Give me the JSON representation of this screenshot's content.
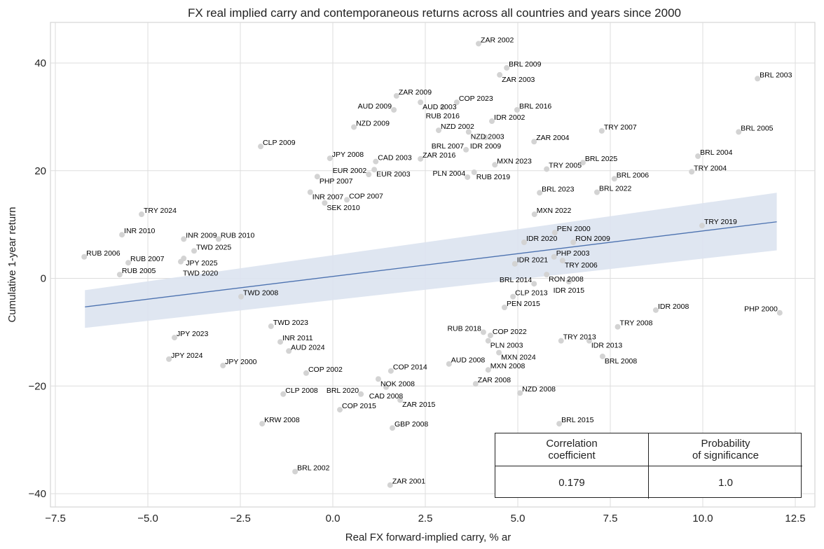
{
  "chart_data": {
    "type": "scatter",
    "title": "FX real implied carry and contemporaneous returns across all countries and years since 2000",
    "xlabel": "Real FX forward-implied carry, % ar",
    "ylabel": "Cumulative 1-year return",
    "xlim": [
      -7.7,
      12.9
    ],
    "ylim": [
      -43,
      47.5
    ],
    "xticks": [
      -7.5,
      -5.0,
      -2.5,
      0.0,
      2.5,
      5.0,
      7.5,
      10.0,
      12.5
    ],
    "yticks": [
      -40,
      -20,
      0,
      20,
      40
    ],
    "grid": true,
    "colors": {
      "points": "#d3d3d3",
      "regression": "#4c72b0",
      "band": "#dbe3f0"
    },
    "regression": {
      "x": [
        -6.7,
        12.0
      ],
      "y": [
        -5.3,
        10.5
      ],
      "band_lower": [
        -9.2,
        5.2
      ],
      "band_upper": [
        -2.2,
        15.9
      ]
    },
    "points": [
      {
        "label": "ZAR 2002",
        "x": 3.94,
        "y": 43.6
      },
      {
        "label": "BRL 2009",
        "x": 4.7,
        "y": 39.1
      },
      {
        "label": "ZAR 2003",
        "x": 4.51,
        "y": 37.8
      },
      {
        "label": "BRL 2003",
        "x": 11.48,
        "y": 37.1
      },
      {
        "label": "ZAR 2009",
        "x": 1.72,
        "y": 33.9
      },
      {
        "label": "AUD 2003",
        "x": 2.37,
        "y": 32.7
      },
      {
        "label": "COP 2023",
        "x": 3.35,
        "y": 32.7
      },
      {
        "label": "AUD 2009",
        "x": 1.65,
        "y": 31.3
      },
      {
        "label": "RUB 2016",
        "x": 2.97,
        "y": 31.8
      },
      {
        "label": "BRL 2016",
        "x": 4.98,
        "y": 31.3
      },
      {
        "label": "IDR 2002",
        "x": 4.3,
        "y": 29.2
      },
      {
        "label": "NZD 2009",
        "x": 0.57,
        "y": 28.1
      },
      {
        "label": "NZD 2002",
        "x": 2.86,
        "y": 27.5
      },
      {
        "label": "NZD 2003",
        "x": 3.67,
        "y": 27.2
      },
      {
        "label": "TRY 2007",
        "x": 7.27,
        "y": 27.4
      },
      {
        "label": "BRL 2005",
        "x": 10.97,
        "y": 27.2
      },
      {
        "label": "IDR 2009",
        "x": 4.13,
        "y": 26.2
      },
      {
        "label": "ZAR 2004",
        "x": 5.44,
        "y": 25.4
      },
      {
        "label": "CLP 2009",
        "x": -1.95,
        "y": 24.5
      },
      {
        "label": "BRL 2007",
        "x": 3.6,
        "y": 23.9
      },
      {
        "label": "BRL 2004",
        "x": 9.87,
        "y": 22.7
      },
      {
        "label": "JPY 2008",
        "x": -0.08,
        "y": 22.3
      },
      {
        "label": "CAD 2003",
        "x": 1.16,
        "y": 21.7
      },
      {
        "label": "ZAR 2016",
        "x": 2.37,
        "y": 22.2
      },
      {
        "label": "MXN 2023",
        "x": 4.38,
        "y": 21.1
      },
      {
        "label": "BRL 2025",
        "x": 6.76,
        "y": 21.5
      },
      {
        "label": "TRY 2005",
        "x": 5.78,
        "y": 20.3
      },
      {
        "label": "TRY 2004",
        "x": 9.7,
        "y": 19.8
      },
      {
        "label": "EUR 2003",
        "x": 1.12,
        "y": 20.2
      },
      {
        "label": "RUB 2019",
        "x": 3.82,
        "y": 19.7
      },
      {
        "label": "BRL 2006",
        "x": 7.61,
        "y": 18.5
      },
      {
        "label": "EUR 2002",
        "x": 0.97,
        "y": 19.3
      },
      {
        "label": "PLN 2004",
        "x": 3.64,
        "y": 18.8
      },
      {
        "label": "PHP 2007",
        "x": -0.42,
        "y": 18.9
      },
      {
        "label": "BRL 2023",
        "x": 5.59,
        "y": 15.9
      },
      {
        "label": "BRL 2022",
        "x": 7.14,
        "y": 16.0
      },
      {
        "label": "INR 2007",
        "x": -0.61,
        "y": 16.0
      },
      {
        "label": "COP 2007",
        "x": 0.38,
        "y": 14.6
      },
      {
        "label": "SEK 2010",
        "x": -0.22,
        "y": 14.0
      },
      {
        "label": "TRY 2024",
        "x": -5.17,
        "y": 11.9
      },
      {
        "label": "MXN 2022",
        "x": 5.45,
        "y": 11.9
      },
      {
        "label": "INR 2010",
        "x": -5.7,
        "y": 8.1
      },
      {
        "label": "INR 2009",
        "x": -4.03,
        "y": 7.3
      },
      {
        "label": "RUB 2010",
        "x": -3.09,
        "y": 7.3
      },
      {
        "label": "TRY 2019",
        "x": 9.98,
        "y": 9.8
      },
      {
        "label": "PEN 2000",
        "x": 6.0,
        "y": 8.5
      },
      {
        "label": "RUB 2006",
        "x": -6.72,
        "y": 4.0
      },
      {
        "label": "TWD 2025",
        "x": -3.75,
        "y": 5.1
      },
      {
        "label": "JPY 2025",
        "x": -4.03,
        "y": 3.7
      },
      {
        "label": "RUB 2007",
        "x": -5.53,
        "y": 2.9
      },
      {
        "label": "TWD 2020",
        "x": -4.11,
        "y": 3.1
      },
      {
        "label": "RUB 2005",
        "x": -5.76,
        "y": 0.7
      },
      {
        "label": "RON 2009",
        "x": 6.5,
        "y": 6.7
      },
      {
        "label": "IDR 2020",
        "x": 5.17,
        "y": 6.7
      },
      {
        "label": "PHP 2003",
        "x": 5.98,
        "y": 4.0
      },
      {
        "label": "TRY 2006",
        "x": 6.21,
        "y": 3.3
      },
      {
        "label": "IDR 2021",
        "x": 4.92,
        "y": 2.7
      },
      {
        "label": "RON 2008",
        "x": 5.78,
        "y": 0.7
      },
      {
        "label": "IDR 2015",
        "x": 6.38,
        "y": -0.6
      },
      {
        "label": "BRL 2014",
        "x": 5.44,
        "y": -1.0
      },
      {
        "label": "CLP 2013",
        "x": 4.87,
        "y": -3.4
      },
      {
        "label": "IDR 2008",
        "x": 8.73,
        "y": -5.9
      },
      {
        "label": "PHP 2000",
        "x": 12.08,
        "y": -6.4
      },
      {
        "label": "TRY 2008",
        "x": 7.7,
        "y": -9.0
      },
      {
        "label": "TRY 2013",
        "x": 6.17,
        "y": -11.6
      },
      {
        "label": "IDR 2013",
        "x": 6.93,
        "y": -11.6
      },
      {
        "label": "BRL 2008",
        "x": 7.29,
        "y": -14.5
      },
      {
        "label": "PEN 2015",
        "x": 4.64,
        "y": -5.4
      },
      {
        "label": "COP 2022",
        "x": 4.26,
        "y": -10.6
      },
      {
        "label": "RUB 2018",
        "x": 4.07,
        "y": -10.0
      },
      {
        "label": "PLN 2003",
        "x": 4.2,
        "y": -11.6
      },
      {
        "label": "MXN 2024",
        "x": 4.49,
        "y": -13.8
      },
      {
        "label": "MXN 2008",
        "x": 4.2,
        "y": -17.0
      },
      {
        "label": "AUD 2008",
        "x": 3.14,
        "y": -15.9
      },
      {
        "label": "NZD 2008",
        "x": 5.06,
        "y": -21.3
      },
      {
        "label": "BRL 2015",
        "x": 6.12,
        "y": -27.0
      },
      {
        "label": "ZAR 2008",
        "x": 3.86,
        "y": -19.6
      },
      {
        "label": "COP 2014",
        "x": 1.57,
        "y": -17.2
      },
      {
        "label": "NOK 2008",
        "x": 1.23,
        "y": -18.7
      },
      {
        "label": "CAD 2008",
        "x": 1.44,
        "y": -20.2
      },
      {
        "label": "BRL 2020",
        "x": 0.76,
        "y": -21.5
      },
      {
        "label": "ZAR 2015",
        "x": 1.82,
        "y": -22.6
      },
      {
        "label": "COP 2015",
        "x": 0.19,
        "y": -24.4
      },
      {
        "label": "GBP 2008",
        "x": 1.61,
        "y": -27.8
      },
      {
        "label": "ZAR 2001",
        "x": 1.55,
        "y": -38.4
      },
      {
        "label": "BRL 2002",
        "x": -1.02,
        "y": -35.9
      },
      {
        "label": "KRW 2008",
        "x": -1.91,
        "y": -27.0
      },
      {
        "label": "CLP 2008",
        "x": -1.34,
        "y": -21.5
      },
      {
        "label": "JPY 2023",
        "x": -4.28,
        "y": -11.0
      },
      {
        "label": "JPY 2024",
        "x": -4.43,
        "y": -15.0
      },
      {
        "label": "JPY 2000",
        "x": -2.97,
        "y": -16.2
      },
      {
        "label": "COP 2002",
        "x": -0.72,
        "y": -17.6
      },
      {
        "label": "TWD 2008",
        "x": -2.48,
        "y": -3.4
      },
      {
        "label": "TWD 2023",
        "x": -1.67,
        "y": -8.9
      },
      {
        "label": "INR 2011",
        "x": -1.42,
        "y": -11.8
      },
      {
        "label": "AUD 2024",
        "x": -1.19,
        "y": -13.5
      }
    ]
  },
  "stats_table": {
    "headers": [
      "Correlation\ncoefficient",
      "Probability\nof significance"
    ],
    "values": [
      "0.179",
      "1.0"
    ]
  }
}
